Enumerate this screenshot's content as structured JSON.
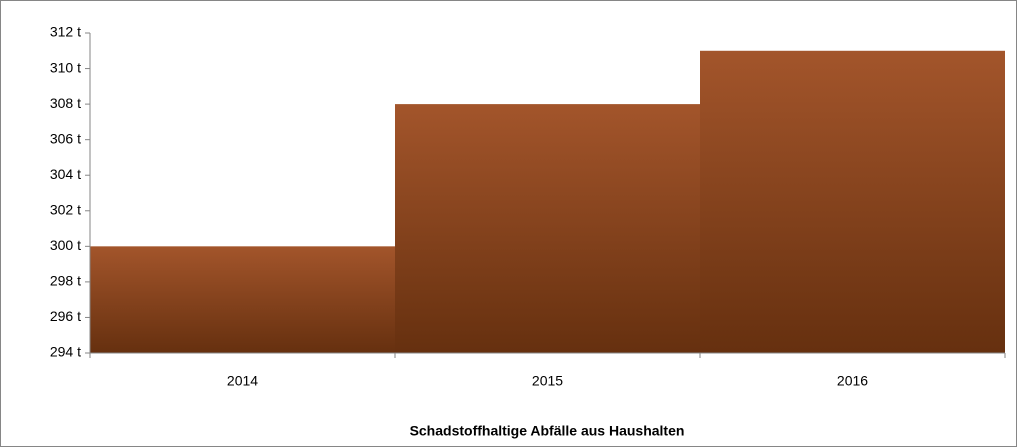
{
  "chart_data": {
    "type": "bar",
    "x_label": "Schadstoffhaltige Abfälle aus Haushalten",
    "categories": [
      "2014",
      "2015",
      "2016"
    ],
    "values": [
      300,
      308,
      311
    ],
    "color": "#a3552b",
    "ylim": [
      294,
      312
    ],
    "yticks": [
      {
        "value": 294,
        "label": "294 t"
      },
      {
        "value": 296,
        "label": "296 t"
      },
      {
        "value": 298,
        "label": "298 t"
      },
      {
        "value": 300,
        "label": "300 t"
      },
      {
        "value": 302,
        "label": "302 t"
      },
      {
        "value": 304,
        "label": "304 t"
      },
      {
        "value": 306,
        "label": "306 t"
      },
      {
        "value": 308,
        "label": "308 t"
      },
      {
        "value": 310,
        "label": "310 t"
      },
      {
        "value": 312,
        "label": "312 t"
      }
    ],
    "grid": false
  }
}
